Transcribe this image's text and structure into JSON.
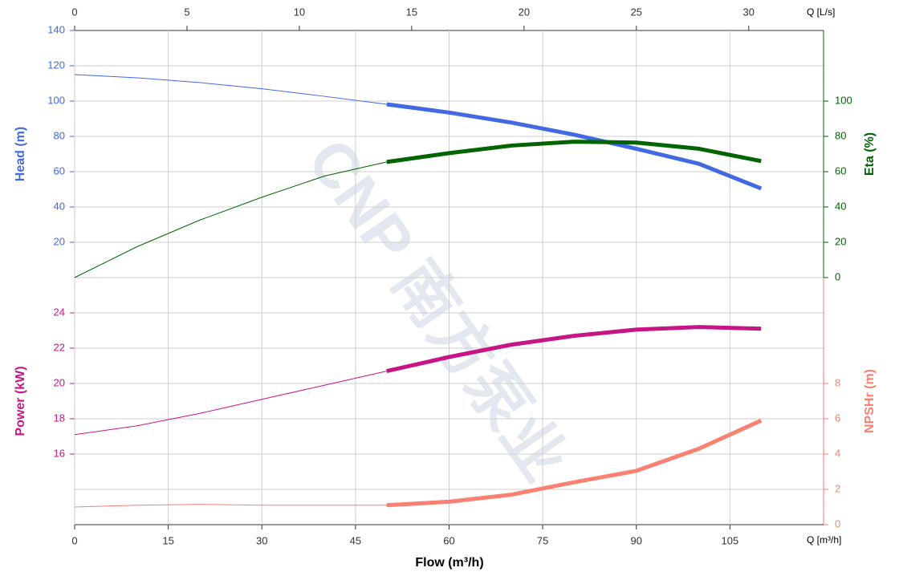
{
  "chart_data": {
    "type": "line",
    "xlabel": "Flow (m³/h)",
    "x_unit": "Q [m³/h]",
    "x2_unit": "Q [L/s]",
    "watermark": "CNP 南方泵业",
    "xlim": [
      0,
      120
    ],
    "xticks": [
      0,
      15,
      30,
      45,
      60,
      75,
      90,
      105
    ],
    "x2lim": [
      0,
      33.33
    ],
    "x2ticks": [
      0,
      5,
      10,
      15,
      20,
      25,
      30
    ],
    "ylabel": "Head (m)",
    "ylim": [
      0,
      140
    ],
    "yticks": [
      20,
      40,
      60,
      80,
      100,
      120,
      140
    ],
    "ycolor": "#4169e1",
    "y2label": "Eta (%)",
    "y2lim": [
      0,
      140
    ],
    "y2ticks": [
      0,
      20,
      40,
      60,
      80,
      100
    ],
    "y2color": "#006400",
    "y3label": "Power (kW)",
    "y3lim": [
      12,
      26
    ],
    "y3ticks": [
      16,
      18,
      20,
      22,
      24
    ],
    "y3color": "#c71585",
    "y4label": "NPSHr (m)",
    "y4lim": [
      0,
      14
    ],
    "y4ticks": [
      0,
      2,
      4,
      6,
      8
    ],
    "y4color": "#fa8072",
    "grid": true,
    "x": [
      0,
      10,
      20,
      30,
      40,
      50,
      60,
      70,
      80,
      90,
      100,
      110
    ],
    "series": [
      {
        "axis": "y",
        "style": "thin",
        "color": "#4169e1",
        "values": [
          115,
          113.2,
          110.5,
          107,
          102.7,
          98.2,
          null,
          null,
          null,
          null,
          null,
          null
        ]
      },
      {
        "axis": "y",
        "style": "thick",
        "color": "#4169e1",
        "values": [
          null,
          null,
          null,
          null,
          null,
          98.2,
          93.5,
          87.8,
          81,
          73,
          64.5,
          50.5
        ]
      },
      {
        "axis": "y2",
        "style": "thin",
        "color": "#006400",
        "values": [
          0,
          17.5,
          32.5,
          45.5,
          57.5,
          65.5,
          null,
          null,
          null,
          null,
          null,
          null
        ]
      },
      {
        "axis": "y2",
        "style": "thick",
        "color": "#006400",
        "values": [
          null,
          null,
          null,
          null,
          null,
          65.5,
          70.5,
          74.8,
          77,
          76.5,
          73,
          66
        ]
      },
      {
        "axis": "y3",
        "style": "thin",
        "color": "#c71585",
        "values": [
          17.1,
          17.6,
          18.3,
          19.1,
          19.9,
          20.7,
          null,
          null,
          null,
          null,
          null,
          null
        ]
      },
      {
        "axis": "y3",
        "style": "thick",
        "color": "#c71585",
        "values": [
          null,
          null,
          null,
          null,
          null,
          20.7,
          21.5,
          22.2,
          22.7,
          23.05,
          23.2,
          23.1
        ]
      },
      {
        "axis": "y4",
        "style": "thin",
        "color": "#fa8072",
        "values": [
          1.0,
          1.1,
          1.15,
          1.1,
          1.1,
          1.1,
          null,
          null,
          null,
          null,
          null,
          null
        ]
      },
      {
        "axis": "y4",
        "style": "thick",
        "color": "#fa8072",
        "values": [
          null,
          null,
          null,
          null,
          null,
          1.1,
          1.3,
          1.7,
          2.4,
          3.05,
          4.3,
          5.9
        ]
      }
    ]
  }
}
